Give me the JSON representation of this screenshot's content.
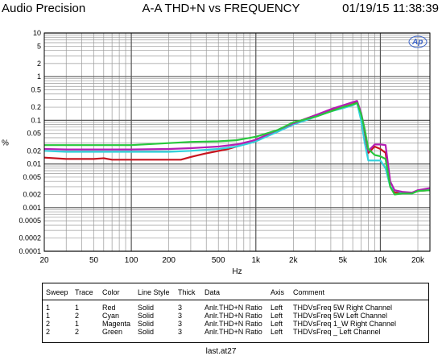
{
  "header": {
    "left": "Audio Precision",
    "title": "A-A THD+N vs FREQUENCY",
    "right": "01/19/15 11:38:39"
  },
  "chart_data": {
    "type": "line",
    "title": "A-A THD+N vs FREQUENCY",
    "xlabel": "Hz",
    "ylabel": "%",
    "x_scale": "log",
    "y_scale": "log",
    "xlim": [
      20,
      25000
    ],
    "ylim": [
      0.0001,
      10
    ],
    "grid": true,
    "x_ticks": [
      "20",
      "50",
      "100",
      "200",
      "500",
      "1k",
      "2k",
      "5k",
      "10k",
      "20k"
    ],
    "y_ticks": [
      "10",
      "5",
      "2",
      "1",
      "0.5",
      "0.2",
      "0.1",
      "0.05",
      "0.02",
      "0.01",
      "0.005",
      "0.002",
      "0.001",
      "0.0005",
      "0.0002",
      "0.0001"
    ],
    "logo": "Ap",
    "series": [
      {
        "name": "THDVsFreq 5W Right Channel",
        "color": "#c8141e",
        "points": [
          [
            20,
            0.014
          ],
          [
            30,
            0.013
          ],
          [
            50,
            0.013
          ],
          [
            60,
            0.0135
          ],
          [
            70,
            0.0125
          ],
          [
            100,
            0.0125
          ],
          [
            150,
            0.0125
          ],
          [
            250,
            0.0125
          ],
          [
            300,
            0.0145
          ],
          [
            400,
            0.0175
          ],
          [
            600,
            0.022
          ],
          [
            800,
            0.028
          ],
          [
            1000,
            0.035
          ],
          [
            1500,
            0.055
          ],
          [
            2000,
            0.085
          ],
          [
            3000,
            0.13
          ],
          [
            4000,
            0.17
          ],
          [
            5000,
            0.2
          ],
          [
            6000,
            0.235
          ],
          [
            6500,
            0.26
          ],
          [
            7000,
            0.13
          ],
          [
            7500,
            0.05
          ],
          [
            8000,
            0.018
          ],
          [
            9000,
            0.025
          ],
          [
            10000,
            0.022
          ],
          [
            11000,
            0.018
          ],
          [
            12000,
            0.003
          ],
          [
            13000,
            0.0022
          ],
          [
            15000,
            0.0022
          ],
          [
            18000,
            0.0022
          ],
          [
            20000,
            0.0024
          ],
          [
            25000,
            0.0025
          ]
        ]
      },
      {
        "name": "THDVsFreq 5W Left Channel",
        "color": "#32d2dc",
        "points": [
          [
            20,
            0.02
          ],
          [
            30,
            0.019
          ],
          [
            50,
            0.019
          ],
          [
            100,
            0.019
          ],
          [
            150,
            0.019
          ],
          [
            200,
            0.019
          ],
          [
            300,
            0.02
          ],
          [
            500,
            0.022
          ],
          [
            700,
            0.025
          ],
          [
            900,
            0.03
          ],
          [
            1000,
            0.033
          ],
          [
            1500,
            0.055
          ],
          [
            2000,
            0.08
          ],
          [
            3000,
            0.12
          ],
          [
            4000,
            0.16
          ],
          [
            5000,
            0.19
          ],
          [
            6000,
            0.22
          ],
          [
            6500,
            0.25
          ],
          [
            7000,
            0.1
          ],
          [
            7500,
            0.03
          ],
          [
            8000,
            0.012
          ],
          [
            9000,
            0.012
          ],
          [
            10000,
            0.012
          ],
          [
            11000,
            0.008
          ],
          [
            12000,
            0.003
          ],
          [
            13000,
            0.0025
          ],
          [
            15000,
            0.0022
          ],
          [
            18000,
            0.0021
          ],
          [
            20000,
            0.0025
          ],
          [
            25000,
            0.0025
          ]
        ]
      },
      {
        "name": "THDVsFreq 1_W Right Channel",
        "color": "#b41eb4",
        "points": [
          [
            20,
            0.022
          ],
          [
            30,
            0.0215
          ],
          [
            50,
            0.0215
          ],
          [
            100,
            0.0215
          ],
          [
            200,
            0.022
          ],
          [
            300,
            0.023
          ],
          [
            500,
            0.025
          ],
          [
            700,
            0.028
          ],
          [
            900,
            0.033
          ],
          [
            1000,
            0.036
          ],
          [
            1500,
            0.06
          ],
          [
            2000,
            0.085
          ],
          [
            3000,
            0.13
          ],
          [
            4000,
            0.18
          ],
          [
            5000,
            0.22
          ],
          [
            6000,
            0.26
          ],
          [
            6500,
            0.28
          ],
          [
            7000,
            0.15
          ],
          [
            7500,
            0.06
          ],
          [
            8000,
            0.02
          ],
          [
            9000,
            0.028
          ],
          [
            10000,
            0.028
          ],
          [
            11000,
            0.027
          ],
          [
            12000,
            0.004
          ],
          [
            13000,
            0.0025
          ],
          [
            15000,
            0.0023
          ],
          [
            18000,
            0.0022
          ],
          [
            20000,
            0.0025
          ],
          [
            25000,
            0.0028
          ]
        ]
      },
      {
        "name": "THDVsFreq _ Left Channel",
        "color": "#28c83c",
        "points": [
          [
            20,
            0.027
          ],
          [
            30,
            0.027
          ],
          [
            50,
            0.027
          ],
          [
            100,
            0.027
          ],
          [
            200,
            0.03
          ],
          [
            300,
            0.032
          ],
          [
            500,
            0.033
          ],
          [
            700,
            0.035
          ],
          [
            1000,
            0.042
          ],
          [
            1500,
            0.06
          ],
          [
            2000,
            0.09
          ],
          [
            3000,
            0.12
          ],
          [
            4000,
            0.16
          ],
          [
            5000,
            0.2
          ],
          [
            6000,
            0.23
          ],
          [
            6500,
            0.25
          ],
          [
            7000,
            0.14
          ],
          [
            7500,
            0.06
          ],
          [
            8000,
            0.022
          ],
          [
            9000,
            0.016
          ],
          [
            10000,
            0.015
          ],
          [
            11000,
            0.013
          ],
          [
            12000,
            0.003
          ],
          [
            13000,
            0.002
          ],
          [
            15000,
            0.0021
          ],
          [
            18000,
            0.0021
          ],
          [
            20000,
            0.0024
          ],
          [
            25000,
            0.0025
          ]
        ]
      }
    ]
  },
  "legend": {
    "headers": [
      "Sweep",
      "Trace",
      "Color",
      "Line Style",
      "Thick",
      "Data",
      "Axis",
      "Comment"
    ],
    "rows": [
      [
        "1",
        "1",
        "Red",
        "Solid",
        "3",
        "Anlr.THD+N Ratio",
        "Left",
        "THDVsFreq 5W Right Channel"
      ],
      [
        "1",
        "2",
        "Cyan",
        "Solid",
        "3",
        "Anlr.THD+N Ratio",
        "Left",
        "THDVsFreq 5W Left Channel"
      ],
      [
        "2",
        "1",
        "Magenta",
        "Solid",
        "3",
        "Anlr.THD+N Ratio",
        "Left",
        "THDVsFreq 1_W Right Channel"
      ],
      [
        "2",
        "2",
        "Green",
        "Solid",
        "3",
        "Anlr.THD+N Ratio",
        "Left",
        "THDVsFreq _ Left Channel"
      ]
    ]
  },
  "footer": "last.at27"
}
